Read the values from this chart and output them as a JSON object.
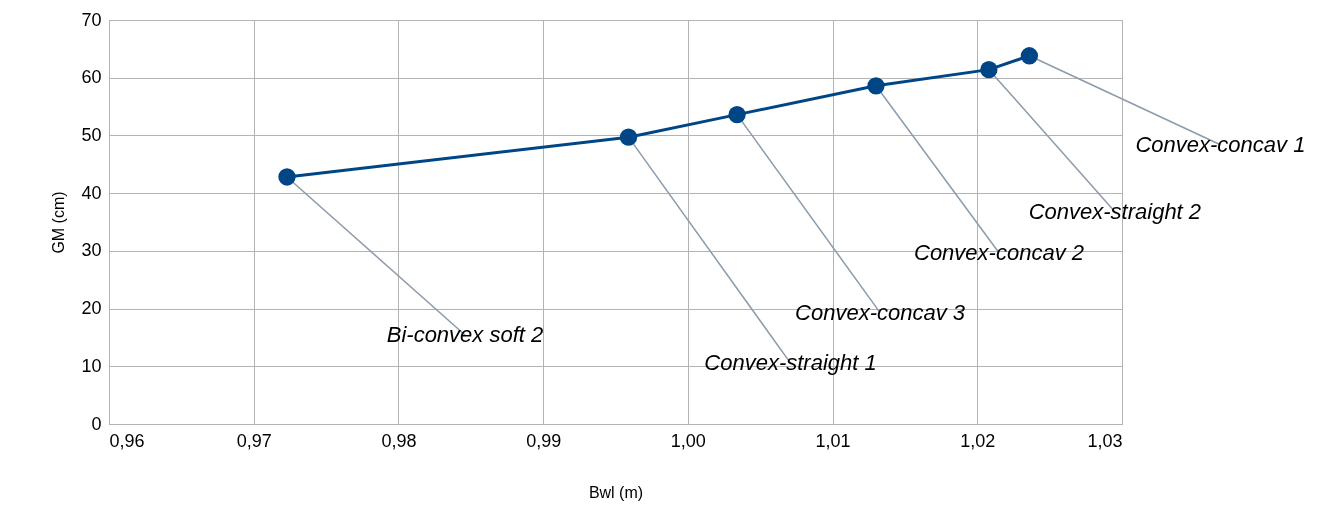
{
  "chart_data": {
    "type": "line",
    "xlabel": "Bwl (m)",
    "ylabel": "GM (cm)",
    "x": [
      0.9723,
      0.9959,
      1.0034,
      1.013,
      1.0208,
      1.0236
    ],
    "series": [
      {
        "color": "#004586",
        "values": [
          42.8,
          49.7,
          53.6,
          58.6,
          61.4,
          63.8
        ]
      }
    ],
    "xlim": [
      0.96,
      1.03
    ],
    "ylim": [
      0,
      70
    ],
    "xticks": [
      {
        "value": 0.96,
        "label": "0,96"
      },
      {
        "value": 0.97,
        "label": "0,97"
      },
      {
        "value": 0.98,
        "label": "0,98"
      },
      {
        "value": 0.99,
        "label": "0,99"
      },
      {
        "value": 1.0,
        "label": "1,00"
      },
      {
        "value": 1.01,
        "label": "1,01"
      },
      {
        "value": 1.02,
        "label": "1,02"
      },
      {
        "value": 1.03,
        "label": "1,03"
      }
    ],
    "yticks": [
      0,
      10,
      20,
      30,
      40,
      50,
      60,
      70
    ],
    "grid": true,
    "marker": "circle",
    "line_style": "solid",
    "annotations": [
      {
        "text": "Bi-convex soft 2",
        "x": 0.9723,
        "y": 42.8
      },
      {
        "text": "Convex-straight 1",
        "x": 0.9959,
        "y": 49.7
      },
      {
        "text": "Convex-concav 3",
        "x": 1.0034,
        "y": 53.6
      },
      {
        "text": "Convex-concav 2",
        "x": 1.013,
        "y": 58.6
      },
      {
        "text": "Convex-straight 2",
        "x": 1.0208,
        "y": 61.4
      },
      {
        "text": "Convex-concav 1",
        "x": 1.0236,
        "y": 63.8
      }
    ]
  }
}
